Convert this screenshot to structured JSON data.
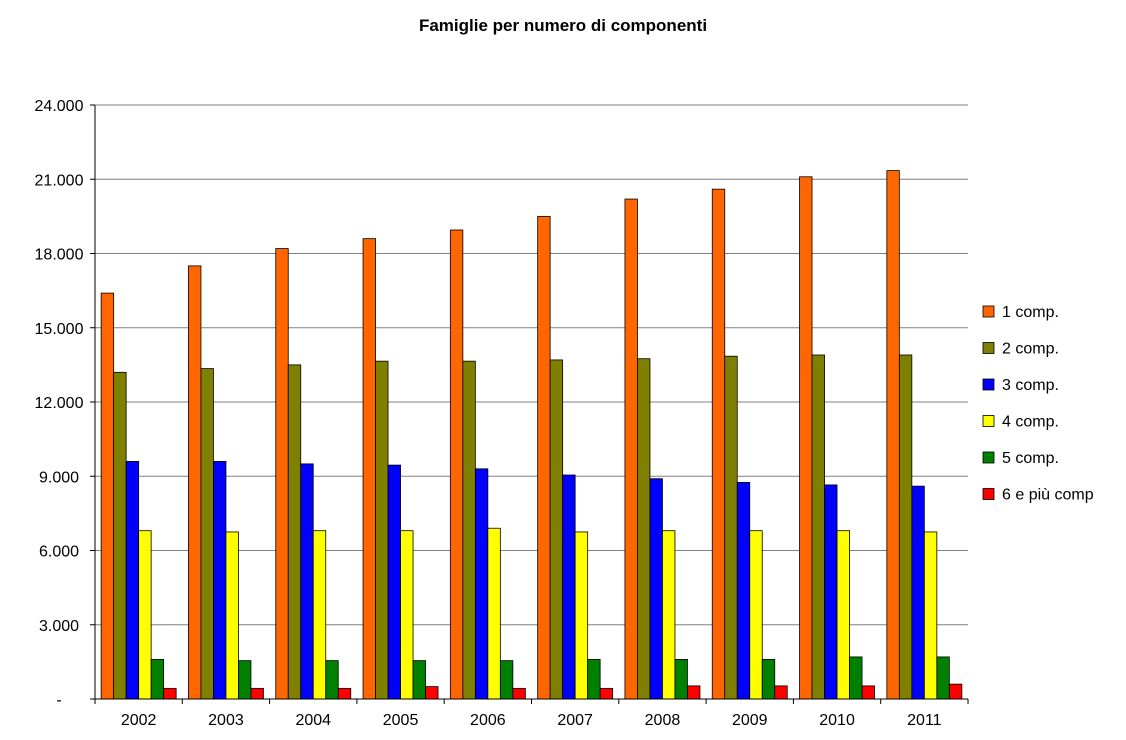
{
  "chart_data": {
    "type": "bar",
    "title": "Famiglie per numero di componenti",
    "xlabel": "",
    "ylabel": "",
    "categories": [
      "2002",
      "2003",
      "2004",
      "2005",
      "2006",
      "2007",
      "2008",
      "2009",
      "2010",
      "2011"
    ],
    "y_ticks": [
      {
        "value": 0,
        "label": "-"
      },
      {
        "value": 3000,
        "label": "3.000"
      },
      {
        "value": 6000,
        "label": "6.000"
      },
      {
        "value": 9000,
        "label": "9.000"
      },
      {
        "value": 12000,
        "label": "12.000"
      },
      {
        "value": 15000,
        "label": "15.000"
      },
      {
        "value": 18000,
        "label": "18.000"
      },
      {
        "value": 21000,
        "label": "21.000"
      },
      {
        "value": 24000,
        "label": "24.000"
      }
    ],
    "ylim": [
      0,
      24000
    ],
    "grid": "horizontal",
    "legend_position": "right",
    "series": [
      {
        "name": "1 comp.",
        "color": "#ff6600",
        "values": [
          16400,
          17500,
          18200,
          18600,
          18950,
          19500,
          20200,
          20600,
          21100,
          21350
        ]
      },
      {
        "name": "2 comp.",
        "color": "#808000",
        "values": [
          13200,
          13350,
          13500,
          13650,
          13650,
          13700,
          13750,
          13850,
          13900,
          13900
        ]
      },
      {
        "name": "3 comp.",
        "color": "#0000ff",
        "values": [
          9600,
          9600,
          9500,
          9450,
          9300,
          9050,
          8900,
          8750,
          8650,
          8600
        ]
      },
      {
        "name": "4 comp.",
        "color": "#ffff00",
        "values": [
          6800,
          6750,
          6800,
          6800,
          6900,
          6750,
          6800,
          6800,
          6800,
          6750
        ]
      },
      {
        "name": "5 comp.",
        "color": "#008000",
        "values": [
          1600,
          1550,
          1550,
          1550,
          1550,
          1600,
          1600,
          1600,
          1700,
          1700
        ]
      },
      {
        "name": "6 e più comp",
        "color": "#ff0000",
        "values": [
          430,
          430,
          430,
          500,
          430,
          430,
          530,
          530,
          530,
          600
        ]
      }
    ]
  }
}
